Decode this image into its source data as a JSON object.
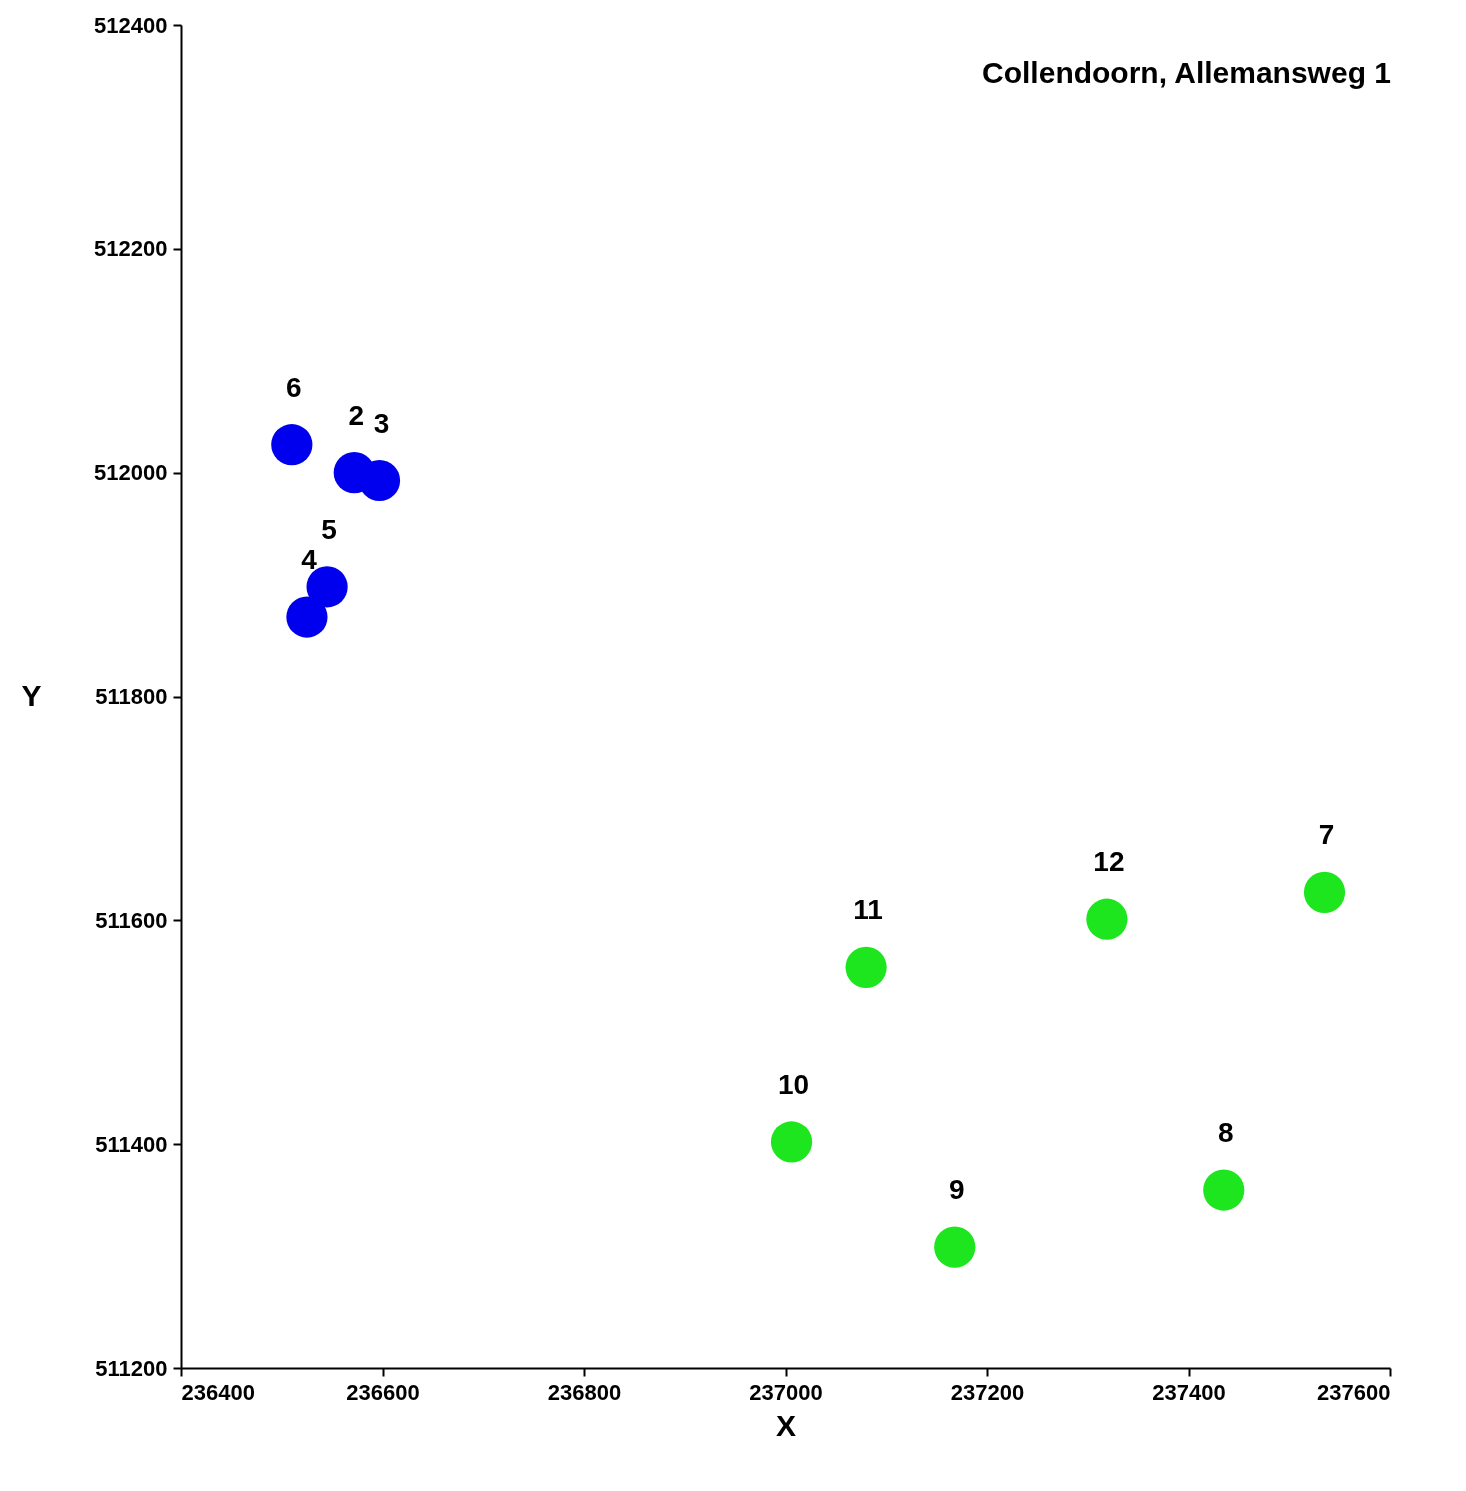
{
  "chart_data": {
    "type": "scatter",
    "title": "Collendoorn, Allemansweg 1",
    "xlabel": "X",
    "ylabel": "Y",
    "xlim": [
      236400,
      237600
    ],
    "xticks": [
      236400,
      236600,
      236800,
      237000,
      237200,
      237400,
      237600
    ],
    "ylim": [
      511200,
      512400
    ],
    "yticks": [
      511200,
      511400,
      511600,
      511800,
      512000,
      512200,
      512400
    ],
    "grid": false,
    "legend": false,
    "marker": "circle",
    "series": [
      {
        "color": "#0000ee",
        "x": [
          236572,
          236597,
          236525,
          236545,
          236510
        ],
        "values": [
          512000,
          511993,
          511871,
          511898,
          512025
        ]
      },
      {
        "color": "#1ee61e",
        "x": [
          237535,
          237435,
          237168,
          237006,
          237080,
          237319
        ],
        "values": [
          511625,
          511359,
          511308,
          511402,
          511558,
          511601
        ]
      }
    ],
    "annotations": [
      {
        "text": "2",
        "x": 236572,
        "y": 512000
      },
      {
        "text": "3",
        "x": 236597,
        "y": 511993
      },
      {
        "text": "4",
        "x": 236525,
        "y": 511871
      },
      {
        "text": "5",
        "x": 236545,
        "y": 511898
      },
      {
        "text": "6",
        "x": 236510,
        "y": 512025
      },
      {
        "text": "7",
        "x": 237535,
        "y": 511625
      },
      {
        "text": "8",
        "x": 237435,
        "y": 511359
      },
      {
        "text": "9",
        "x": 237168,
        "y": 511308
      },
      {
        "text": "10",
        "x": 237006,
        "y": 511402
      },
      {
        "text": "11",
        "x": 237080,
        "y": 511558
      },
      {
        "text": "12",
        "x": 237319,
        "y": 511601
      }
    ]
  }
}
